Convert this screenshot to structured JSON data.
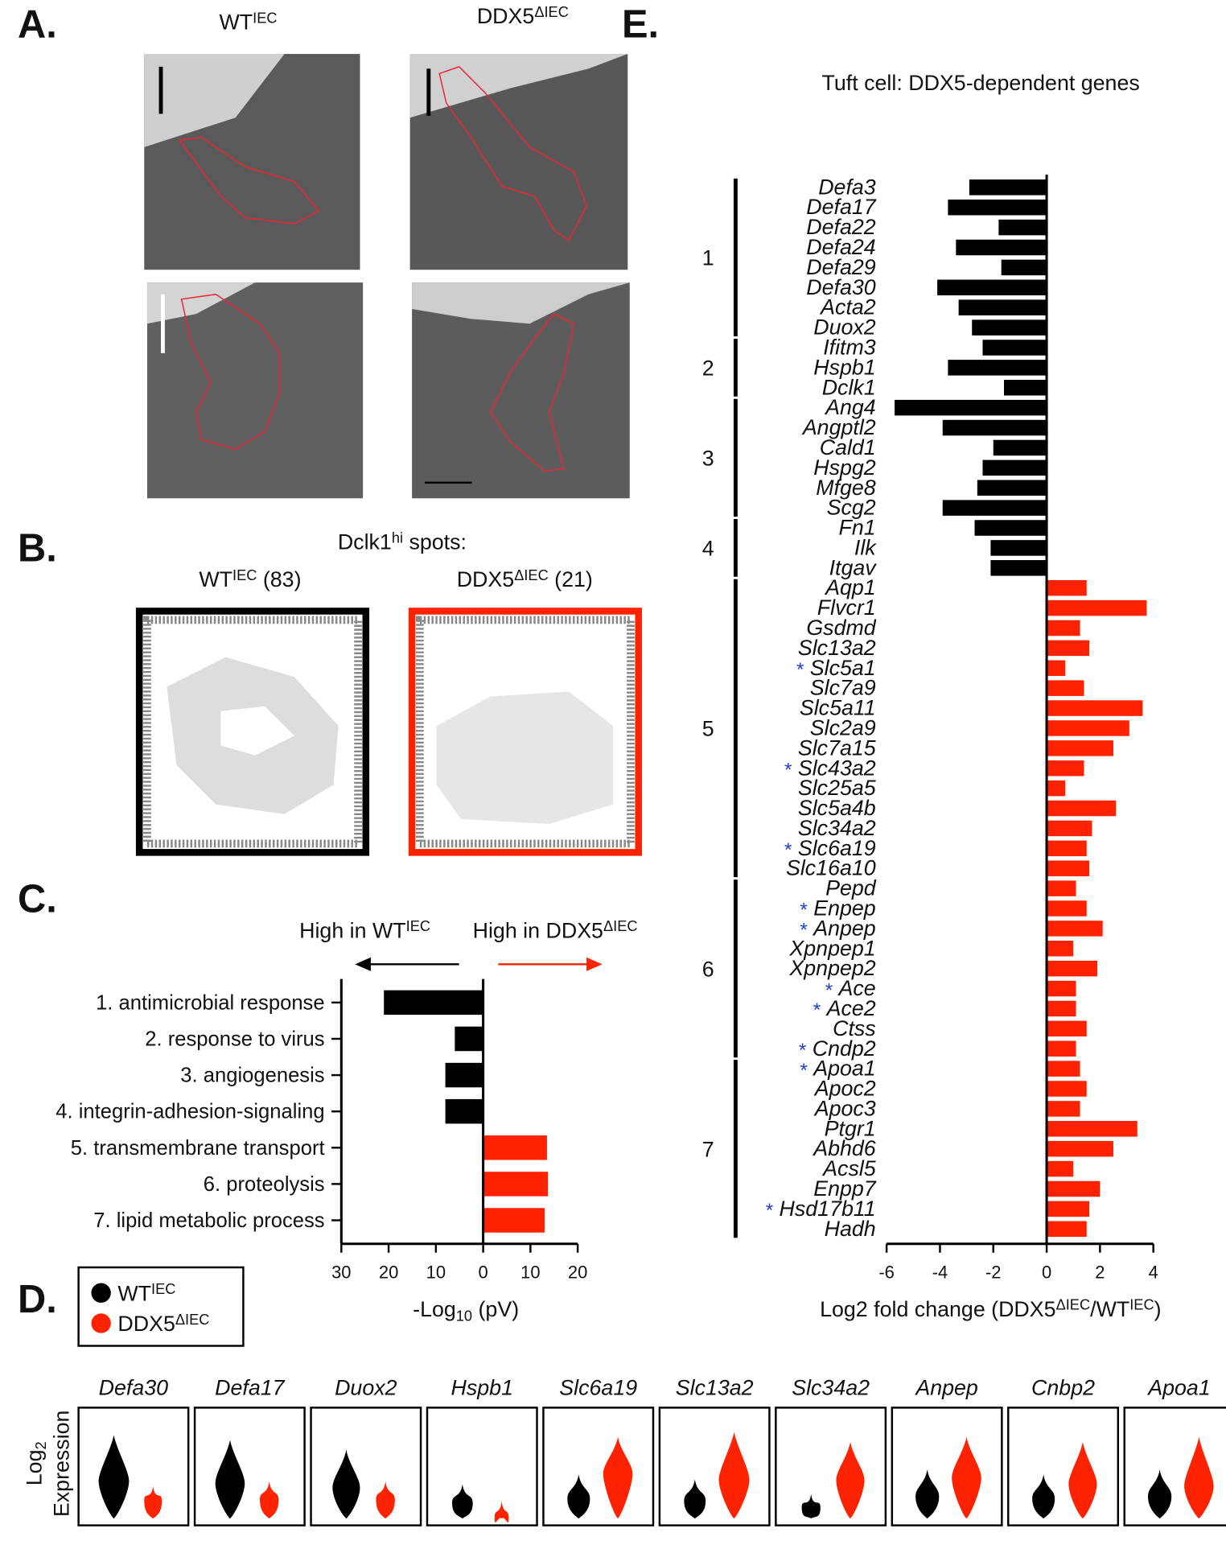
{
  "panel_labels": [
    "A.",
    "B.",
    "C.",
    "D.",
    "E."
  ],
  "panel_a": {
    "columns": [
      [
        "WT",
        "IEC"
      ],
      [
        "DDX5",
        "ΔIEC"
      ]
    ]
  },
  "panel_b": {
    "title": [
      "Dclk1",
      "hi",
      " spots:"
    ],
    "columns": [
      [
        "WT",
        "IEC",
        " (83)"
      ],
      [
        "DDX5",
        "ΔIEC",
        " (21)"
      ]
    ]
  },
  "panel_d": {
    "legend": [
      {
        "label": [
          "WT",
          "IEC"
        ],
        "color": "#000000"
      },
      {
        "label": [
          "DDX5",
          "ΔIEC"
        ],
        "color": "#ff2200"
      }
    ],
    "ylabel": [
      "Log",
      "2",
      "Expression"
    ],
    "genes": [
      "Defa30",
      "Defa17",
      "Duox2",
      "Hspb1",
      "Slc6a19",
      "Slc13a2",
      "Slc34a2",
      "Anpep",
      "Cnbp2",
      "Apoa1"
    ]
  },
  "chart_data": [
    {
      "type": "bar",
      "orientation": "horizontal",
      "categories": [
        "1. antimicrobial response",
        "2. response to virus",
        "3. angiogenesis",
        "4. integrin-adhesion-signaling",
        "5. transmembrane transport",
        "6. proteolysis",
        "7. lipid metabolic process"
      ],
      "values": [
        -21,
        -6,
        -8,
        -8,
        13.5,
        13.7,
        13
      ],
      "color_negative": "#000000",
      "color_positive": "#ff2200",
      "xlim": [
        -30,
        20
      ],
      "xticks": [
        {
          "value": -30,
          "label": "30"
        },
        {
          "value": -20,
          "label": "20"
        },
        {
          "value": -10,
          "label": "10"
        },
        0,
        10,
        20
      ],
      "xlabel": [
        "-Log",
        "10",
        " (pV)"
      ],
      "direction_labels": [
        [
          "High in WT",
          "IEC"
        ],
        [
          "High in DDX5",
          "ΔIEC"
        ]
      ]
    },
    {
      "type": "bar",
      "orientation": "horizontal",
      "title": "Tuft cell: DDX5-dependent genes",
      "categories": [
        "Defa3",
        "Defa17",
        "Defa22",
        "Defa24",
        "Defa29",
        "Defa30",
        "Acta2",
        "Duox2",
        "Ifitm3",
        "Hspb1",
        "Dclk1",
        "Ang4",
        "Angptl2",
        "Cald1",
        "Hspg2",
        "Mfge8",
        "Scg2",
        "Fn1",
        "Ilk",
        "Itgav",
        "Aqp1",
        "Flvcr1",
        "Gsdmd",
        "Slc13a2",
        "Slc5a1",
        "Slc7a9",
        "Slc5a11",
        "Slc2a9",
        "Slc7a15",
        "Slc43a2",
        "Slc25a5",
        "Slc5a4b",
        "Slc34a2",
        "Slc6a19",
        "Slc16a10",
        "Pepd",
        "Enpep",
        "Anpep",
        "Xpnpep1",
        "Xpnpep2",
        "Ace",
        "Ace2",
        "Ctss",
        "Cndp2",
        "Apoa1",
        "Apoc2",
        "Apoc3",
        "Ptgr1",
        "Abhd6",
        "Acsl5",
        "Enpp7",
        "Hsd17b11",
        "Hadh"
      ],
      "values": [
        -2.9,
        -3.7,
        -1.8,
        -3.4,
        -1.7,
        -4.1,
        -3.3,
        -2.8,
        -2.4,
        -3.7,
        -1.6,
        -5.7,
        -3.9,
        -2.0,
        -2.4,
        -2.6,
        -3.9,
        -2.7,
        -2.1,
        -2.1,
        1.5,
        3.75,
        1.25,
        1.6,
        0.7,
        1.4,
        3.6,
        3.1,
        2.5,
        1.4,
        0.7,
        2.6,
        1.7,
        1.5,
        1.6,
        1.1,
        1.5,
        2.1,
        1.0,
        1.9,
        1.1,
        1.1,
        1.5,
        1.1,
        1.25,
        1.5,
        1.25,
        3.4,
        2.5,
        1.0,
        2.0,
        1.6,
        1.5
      ],
      "color_negative": "#000000",
      "color_positive": "#ff2200",
      "xlim": [
        -6,
        4
      ],
      "xticks": [
        -6,
        -4,
        -2,
        0,
        2,
        4
      ],
      "xlabel": [
        "Log2 fold change (DDX5",
        "ΔIEC",
        "/WT",
        "IEC",
        ")"
      ],
      "groups": [
        {
          "label": "1",
          "first": 0,
          "last": 7
        },
        {
          "label": "2",
          "first": 8,
          "last": 10
        },
        {
          "label": "3",
          "first": 11,
          "last": 16
        },
        {
          "label": "4",
          "first": 17,
          "last": 19
        },
        {
          "label": "5",
          "first": 20,
          "last": 34
        },
        {
          "label": "6",
          "first": 35,
          "last": 43
        },
        {
          "label": "7",
          "first": 44,
          "last": 52
        }
      ],
      "annotations": [
        {
          "text": "*",
          "index": 24
        },
        {
          "text": "*",
          "index": 29
        },
        {
          "text": "*",
          "index": 33
        },
        {
          "text": "*",
          "index": 36
        },
        {
          "text": "*",
          "index": 37
        },
        {
          "text": "*",
          "index": 40
        },
        {
          "text": "*",
          "index": 41
        },
        {
          "text": "*",
          "index": 43
        },
        {
          "text": "*",
          "index": 44
        },
        {
          "text": "*",
          "index": 51
        }
      ],
      "annotation_color": "#1f3fd0"
    }
  ]
}
